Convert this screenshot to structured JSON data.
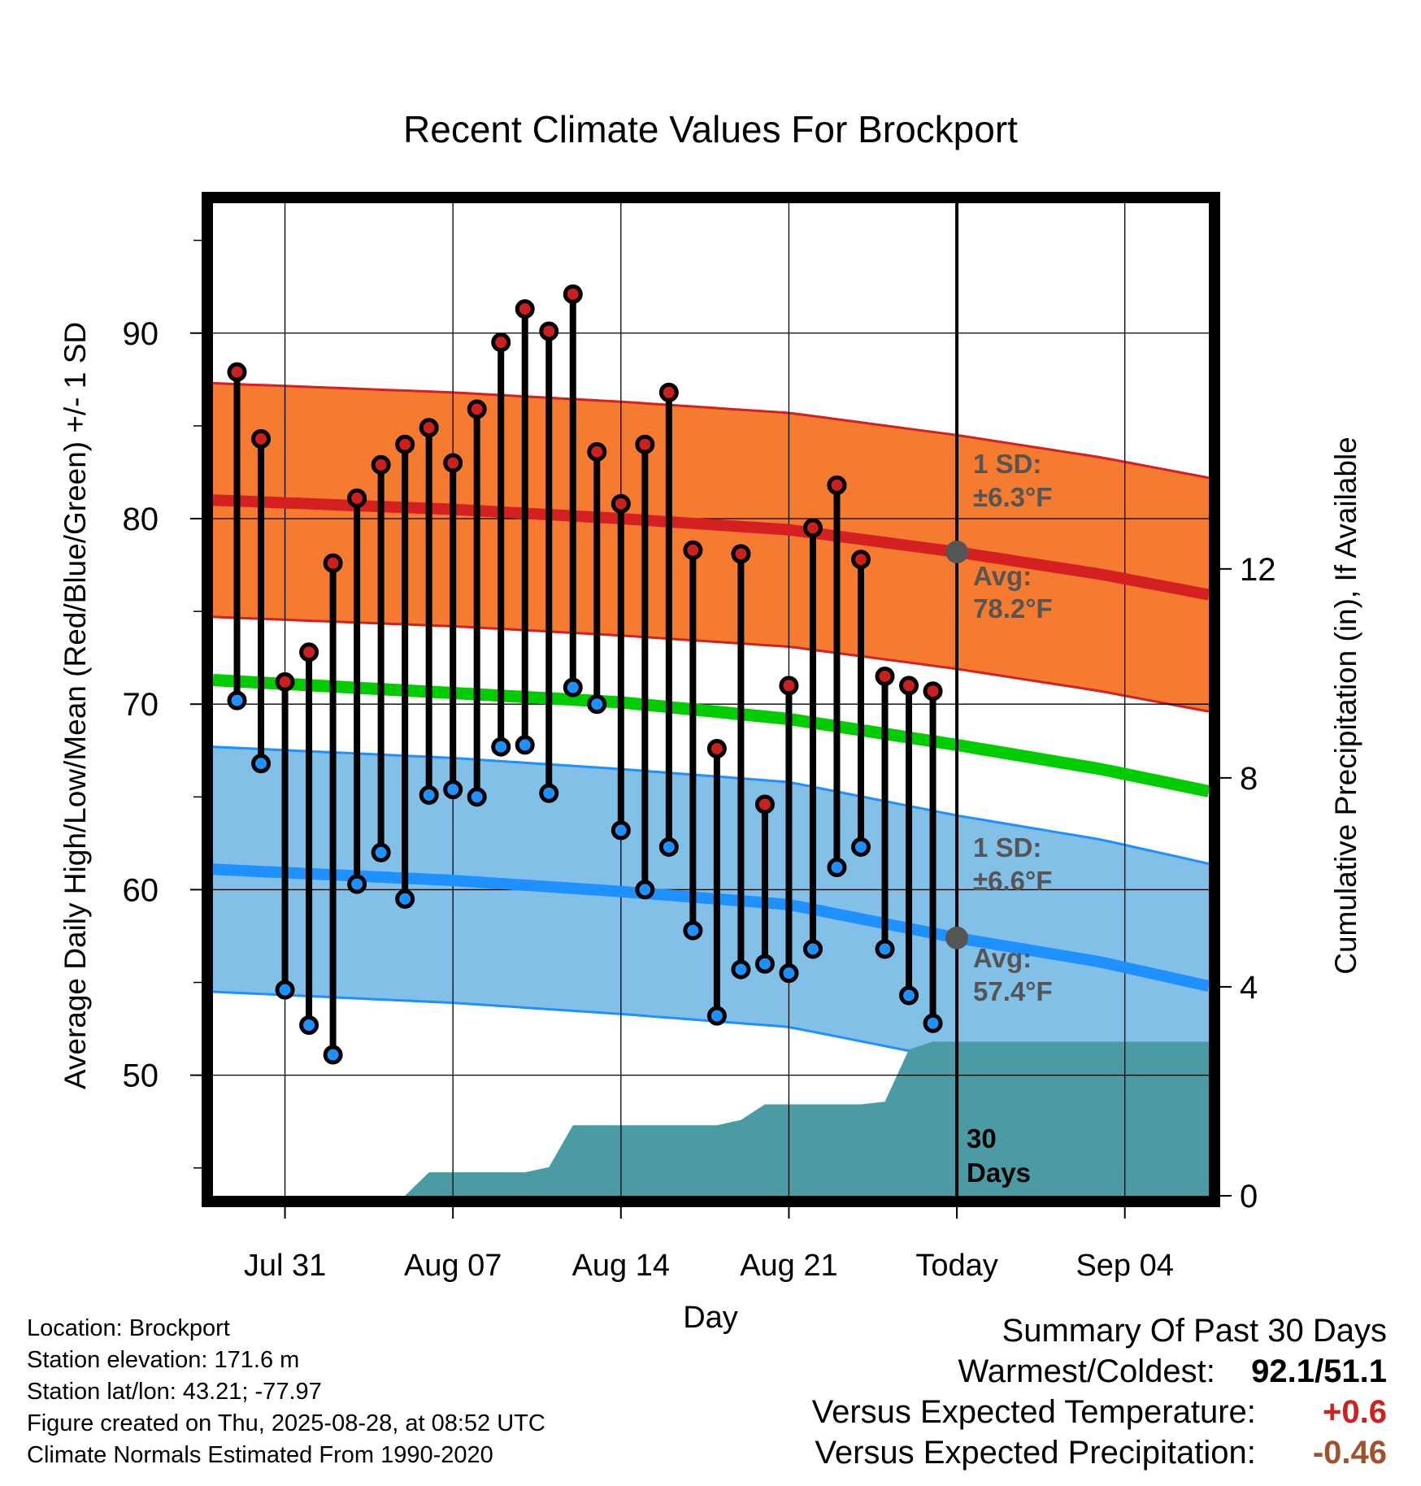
{
  "chart_data": {
    "type": "line",
    "title": "Recent Climate Values For Brockport",
    "xlabel": "Day",
    "ylabel": "Average Daily High/Low/Mean (Red/Blue/Green) +/- 1 SD",
    "y2label": "Cumulative Precipitation (in), If Available",
    "ylim": [
      43.5,
      97
    ],
    "y2lim": [
      0,
      19
    ],
    "y_ticks": [
      "50",
      "60",
      "70",
      "80",
      "90"
    ],
    "y2_ticks": [
      "0",
      "4",
      "8",
      "12"
    ],
    "x_ticks": [
      "Jul 31",
      "Aug 07",
      "Aug 14",
      "Aug 21",
      "Today",
      "Sep 04"
    ],
    "x_tick_days": [
      0,
      7,
      14,
      21,
      28,
      35
    ],
    "x_range_days": [
      -3,
      38.5
    ],
    "today_day": 28,
    "grid": true,
    "daily_high": [
      {
        "day": -2,
        "value": 87.9
      },
      {
        "day": -1,
        "value": 84.3
      },
      {
        "day": 0,
        "value": 71.2
      },
      {
        "day": 1,
        "value": 72.8
      },
      {
        "day": 2,
        "value": 77.6
      },
      {
        "day": 3,
        "value": 81.1
      },
      {
        "day": 4,
        "value": 82.9
      },
      {
        "day": 5,
        "value": 84.0
      },
      {
        "day": 6,
        "value": 84.9
      },
      {
        "day": 7,
        "value": 83.0
      },
      {
        "day": 8,
        "value": 85.9
      },
      {
        "day": 9,
        "value": 89.5
      },
      {
        "day": 10,
        "value": 91.3
      },
      {
        "day": 11,
        "value": 90.1
      },
      {
        "day": 12,
        "value": 92.1
      },
      {
        "day": 13,
        "value": 83.6
      },
      {
        "day": 14,
        "value": 80.8
      },
      {
        "day": 15,
        "value": 84.0
      },
      {
        "day": 16,
        "value": 86.8
      },
      {
        "day": 17,
        "value": 78.3
      },
      {
        "day": 18,
        "value": 67.6
      },
      {
        "day": 19,
        "value": 78.1
      },
      {
        "day": 20,
        "value": 64.6
      },
      {
        "day": 21,
        "value": 71.0
      },
      {
        "day": 22,
        "value": 79.5
      },
      {
        "day": 23,
        "value": 81.8
      },
      {
        "day": 24,
        "value": 77.8
      },
      {
        "day": 25,
        "value": 71.5
      },
      {
        "day": 26,
        "value": 71.0
      },
      {
        "day": 27,
        "value": 70.7
      }
    ],
    "daily_low": [
      {
        "day": -2,
        "value": 70.2
      },
      {
        "day": -1,
        "value": 66.8
      },
      {
        "day": 0,
        "value": 54.6
      },
      {
        "day": 1,
        "value": 52.7
      },
      {
        "day": 2,
        "value": 51.1
      },
      {
        "day": 3,
        "value": 60.3
      },
      {
        "day": 4,
        "value": 62.0
      },
      {
        "day": 5,
        "value": 59.5
      },
      {
        "day": 6,
        "value": 65.1
      },
      {
        "day": 7,
        "value": 65.4
      },
      {
        "day": 8,
        "value": 65.0
      },
      {
        "day": 9,
        "value": 67.7
      },
      {
        "day": 10,
        "value": 67.8
      },
      {
        "day": 11,
        "value": 65.2
      },
      {
        "day": 12,
        "value": 70.9
      },
      {
        "day": 13,
        "value": 70.0
      },
      {
        "day": 14,
        "value": 63.2
      },
      {
        "day": 15,
        "value": 60.0
      },
      {
        "day": 16,
        "value": 62.3
      },
      {
        "day": 17,
        "value": 57.8
      },
      {
        "day": 18,
        "value": 53.2
      },
      {
        "day": 19,
        "value": 55.7
      },
      {
        "day": 20,
        "value": 56.0
      },
      {
        "day": 21,
        "value": 55.5
      },
      {
        "day": 22,
        "value": 56.8
      },
      {
        "day": 23,
        "value": 61.2
      },
      {
        "day": 24,
        "value": 62.3
      },
      {
        "day": 25,
        "value": 56.8
      },
      {
        "day": 26,
        "value": 54.3
      },
      {
        "day": 27,
        "value": 52.8
      }
    ],
    "normal_high": {
      "day": [
        -3,
        7,
        14,
        21,
        28,
        34,
        38.5
      ],
      "value": [
        81.0,
        80.5,
        80.0,
        79.4,
        78.2,
        77.0,
        75.9
      ]
    },
    "normal_mean": {
      "day": [
        -3,
        7,
        14,
        21,
        28,
        34,
        38.5
      ],
      "value": [
        71.3,
        70.6,
        70.1,
        69.2,
        67.8,
        66.5,
        65.3
      ]
    },
    "normal_low": {
      "day": [
        -3,
        7,
        14,
        21,
        28,
        34,
        38.5
      ],
      "value": [
        61.1,
        60.5,
        59.9,
        59.2,
        57.4,
        56.1,
        54.8
      ]
    },
    "high_sd": 6.3,
    "low_sd": 6.6,
    "precip_cumulative": {
      "day": [
        -3,
        5,
        6,
        7,
        10,
        11,
        12,
        17,
        18,
        19,
        20,
        21,
        23,
        24,
        25,
        26,
        27,
        28,
        38.5
      ],
      "value": [
        0,
        0,
        0.45,
        0.45,
        0.45,
        0.55,
        1.35,
        1.35,
        1.35,
        1.45,
        1.75,
        1.75,
        1.75,
        1.75,
        1.8,
        2.8,
        2.95,
        2.95,
        2.95
      ]
    },
    "annotations": {
      "high_sd_label": "1 SD:",
      "high_sd_value": "±6.3°F",
      "high_avg_label": "Avg:",
      "high_avg_value": "78.2°F",
      "low_sd_label": "1 SD:",
      "low_sd_value": "±6.6°F",
      "low_avg_label": "Avg:",
      "low_avg_value": "57.4°F",
      "days_value": "30",
      "days_label": "Days"
    },
    "colors": {
      "high_band": "#f47b30",
      "high_line": "#d42020",
      "low_band": "#82c0e7",
      "low_line": "#1e90ff",
      "mean_line": "#00cc00",
      "precip_fill": "#4a9ba3",
      "high_marker": "#cc1f1f",
      "low_marker": "#1e90ff",
      "annotation_text": "#555555",
      "today_dot": "#555555"
    }
  },
  "info": {
    "location": "Location: Brockport",
    "elevation": "Station elevation: 171.6 m",
    "latlon": "Station lat/lon: 43.21; -77.97",
    "created": "Figure created on Thu, 2025-08-28, at 08:52 UTC",
    "normals": "Climate Normals Estimated From 1990-2020"
  },
  "summary": {
    "heading": "Summary Of Past 30 Days",
    "warm_cold_label": "Warmest/Coldest:",
    "warm_cold_value": "92.1/51.1",
    "temp_label": "Versus Expected Temperature:",
    "temp_value": "+0.6",
    "temp_color": "#cc2222",
    "precip_label": "Versus Expected Precipitation:",
    "precip_value": "-0.46",
    "precip_color": "#a0522d"
  }
}
